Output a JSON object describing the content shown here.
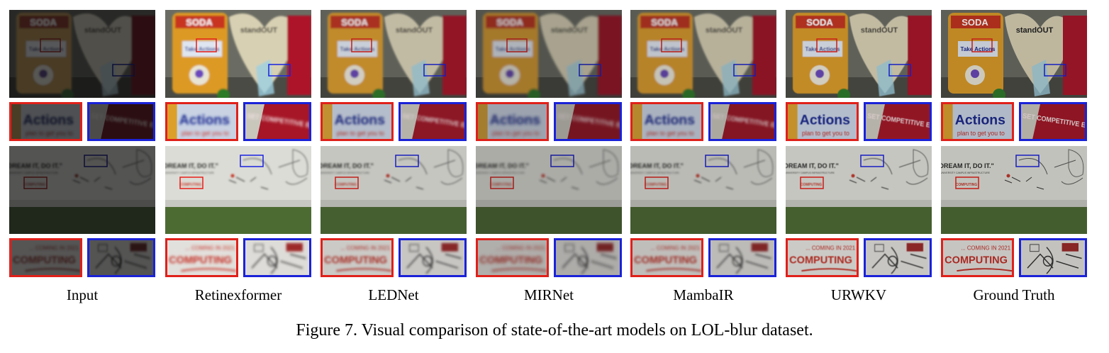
{
  "figure": {
    "caption": "Figure 7. Visual comparison of state-of-the-art models on LOL-blur dataset.",
    "methods": [
      "Input",
      "Retinexformer",
      "LEDNet",
      "MIRNet",
      "MambaIR",
      "URWKV",
      "Ground Truth"
    ]
  },
  "scene1": {
    "can_text": "SODA",
    "heart_text": "standOUT",
    "sign_text": "Take Actions",
    "crop_red_text": "Actions",
    "crop_red_sub": "plan to get you to",
    "crop_blue_text": "SET COMPETITIVE EDGE"
  },
  "scene2": {
    "wall_title": "\"DREAM IT, DO IT.\"",
    "wall_sub": "UNIVERSITY CAMPUS INFRASTRUCTURE",
    "wall_red": "COMPUTING",
    "crop_red_top": "... COMING IN 2021",
    "crop_red_text": "COMPUTING"
  }
}
